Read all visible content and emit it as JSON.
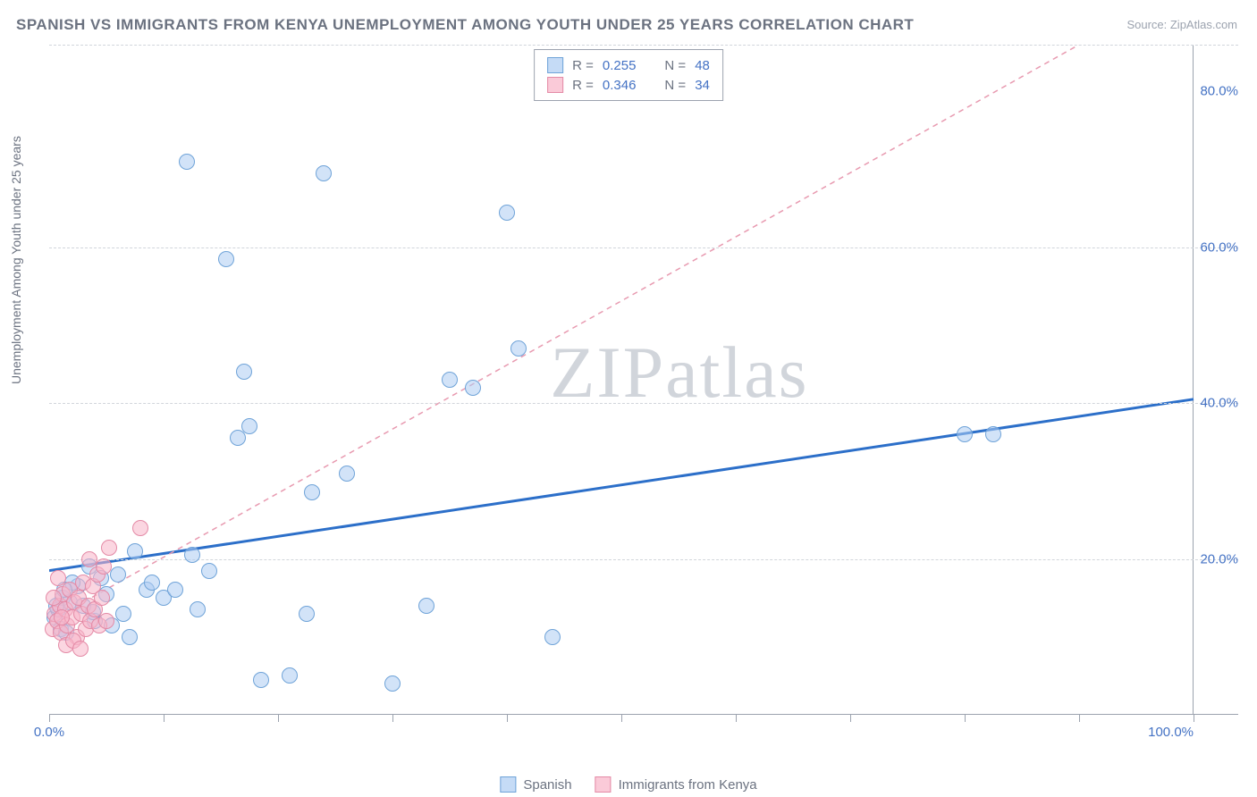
{
  "title": "SPANISH VS IMMIGRANTS FROM KENYA UNEMPLOYMENT AMONG YOUTH UNDER 25 YEARS CORRELATION CHART",
  "source": "Source: ZipAtlas.com",
  "y_axis_label": "Unemployment Among Youth under 25 years",
  "watermark_a": "ZIP",
  "watermark_b": "atlas",
  "chart": {
    "type": "scatter",
    "xlim": [
      0,
      100
    ],
    "ylim": [
      0,
      86
    ],
    "x_ticks": [
      0,
      10,
      20,
      30,
      40,
      50,
      60,
      70,
      80,
      90,
      100
    ],
    "x_tick_labels": [
      {
        "pos": 0,
        "text": "0.0%"
      },
      {
        "pos": 100,
        "text": "100.0%",
        "right": true
      }
    ],
    "y_tick_labels": [
      {
        "pos": 20,
        "text": "20.0%"
      },
      {
        "pos": 40,
        "text": "40.0%"
      },
      {
        "pos": 60,
        "text": "60.0%"
      },
      {
        "pos": 80,
        "text": "80.0%"
      }
    ],
    "gridlines_y": [
      20,
      40,
      60,
      86
    ],
    "background_color": "#ffffff",
    "grid_color": "#d1d5db",
    "series": [
      {
        "name": "Spanish",
        "color_fill": "rgba(173,204,242,0.55)",
        "color_stroke": "#6fa3d8",
        "R": "0.255",
        "N": "48",
        "trend": {
          "x1": 0,
          "y1": 18.5,
          "x2": 100,
          "y2": 40.5,
          "stroke": "#2c6fc9",
          "width": 3,
          "dash": null
        },
        "points": [
          [
            0.5,
            12.5
          ],
          [
            0.8,
            13.5
          ],
          [
            1.0,
            11.0
          ],
          [
            1.2,
            15.0
          ],
          [
            1.5,
            10.5
          ],
          [
            1.8,
            14.5
          ],
          [
            2.5,
            16.5
          ],
          [
            3.0,
            14.0
          ],
          [
            3.5,
            19.0
          ],
          [
            4.0,
            12.0
          ],
          [
            4.5,
            17.5
          ],
          [
            5.0,
            15.5
          ],
          [
            5.5,
            11.5
          ],
          [
            6.0,
            18.0
          ],
          [
            7.0,
            10.0
          ],
          [
            7.5,
            21.0
          ],
          [
            8.5,
            16.0
          ],
          [
            9.0,
            17.0
          ],
          [
            10.0,
            15.0
          ],
          [
            11.0,
            16.0
          ],
          [
            12.0,
            71.0
          ],
          [
            13.0,
            13.5
          ],
          [
            14.0,
            18.5
          ],
          [
            15.5,
            58.5
          ],
          [
            16.5,
            35.5
          ],
          [
            17.0,
            44.0
          ],
          [
            17.5,
            37.0
          ],
          [
            18.5,
            4.5
          ],
          [
            21.0,
            5.0
          ],
          [
            22.5,
            13.0
          ],
          [
            23.0,
            28.5
          ],
          [
            24.0,
            69.5
          ],
          [
            26.0,
            31.0
          ],
          [
            30.0,
            4.0
          ],
          [
            33.0,
            14.0
          ],
          [
            35.0,
            43.0
          ],
          [
            37.0,
            42.0
          ],
          [
            40.0,
            64.5
          ],
          [
            41.0,
            47.0
          ],
          [
            44.0,
            10.0
          ],
          [
            80.0,
            36.0
          ],
          [
            82.5,
            36.0
          ],
          [
            12.5,
            20.5
          ],
          [
            6.5,
            13.0
          ],
          [
            2.0,
            17.0
          ],
          [
            3.8,
            13.2
          ],
          [
            1.3,
            16.0
          ],
          [
            0.6,
            14.0
          ]
        ]
      },
      {
        "name": "Immigrants from Kenya",
        "color_fill": "rgba(248,180,200,0.55)",
        "color_stroke": "#e48aa6",
        "R": "0.346",
        "N": "34",
        "trend": {
          "x1": 0,
          "y1": 12.0,
          "x2": 90,
          "y2": 86,
          "stroke": "#e89ab0",
          "width": 1.5,
          "dash": "6 5"
        },
        "points": [
          [
            0.3,
            11.0
          ],
          [
            0.5,
            13.0
          ],
          [
            0.7,
            12.0
          ],
          [
            0.9,
            14.0
          ],
          [
            1.0,
            10.5
          ],
          [
            1.2,
            15.5
          ],
          [
            1.4,
            13.5
          ],
          [
            1.6,
            11.5
          ],
          [
            1.8,
            16.0
          ],
          [
            2.0,
            12.5
          ],
          [
            2.2,
            14.5
          ],
          [
            2.4,
            10.0
          ],
          [
            2.6,
            15.0
          ],
          [
            2.8,
            13.0
          ],
          [
            3.0,
            17.0
          ],
          [
            3.2,
            11.0
          ],
          [
            3.4,
            14.0
          ],
          [
            3.6,
            12.0
          ],
          [
            3.8,
            16.5
          ],
          [
            4.0,
            13.5
          ],
          [
            4.2,
            18.0
          ],
          [
            4.4,
            11.5
          ],
          [
            4.6,
            15.0
          ],
          [
            4.8,
            19.0
          ],
          [
            5.0,
            12.0
          ],
          [
            5.2,
            21.5
          ],
          [
            1.5,
            9.0
          ],
          [
            2.1,
            9.5
          ],
          [
            2.7,
            8.5
          ],
          [
            0.4,
            15.0
          ],
          [
            0.8,
            17.5
          ],
          [
            1.1,
            12.5
          ],
          [
            8.0,
            24.0
          ],
          [
            3.5,
            20.0
          ]
        ]
      }
    ]
  },
  "legend_top": {
    "rows": [
      {
        "series": 0,
        "r_label": "R =",
        "r_val": "0.255",
        "n_label": "N =",
        "n_val": "48"
      },
      {
        "series": 1,
        "r_label": "R =",
        "r_val": "0.346",
        "n_label": "N =",
        "n_val": "34"
      }
    ]
  },
  "legend_bottom": [
    {
      "series": 0,
      "label": "Spanish"
    },
    {
      "series": 1,
      "label": "Immigrants from Kenya"
    }
  ]
}
